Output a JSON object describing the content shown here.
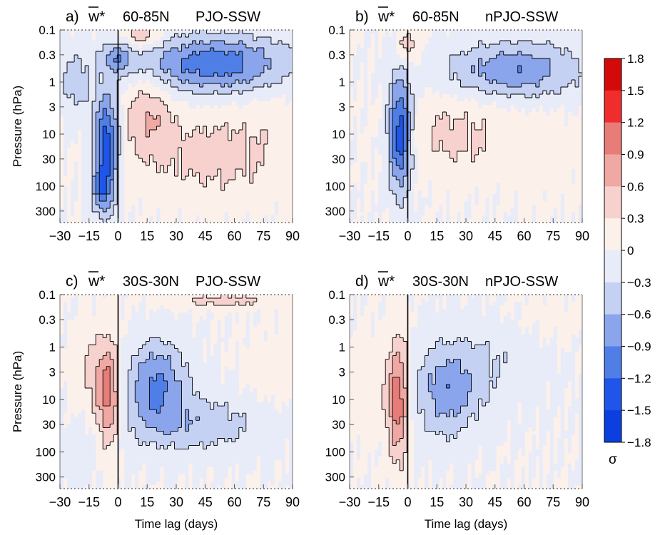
{
  "colors": {
    "neg": [
      "#0a1f9a",
      "#0b3fe0",
      "#1f55e8",
      "#4f7fe6",
      "#8aa5ec",
      "#c4d1f3",
      "#e8ebf8"
    ],
    "pos": [
      "#fcf0ea",
      "#f6d1cd",
      "#f0a8a2",
      "#e77c78",
      "#f02d2d",
      "#d40a0a",
      "#8e0a0a"
    ],
    "contour": "#000000"
  },
  "chart_data": [
    {
      "type": "heatmap",
      "panel": "a",
      "label": "a)",
      "variable": "w*",
      "region": "60-85N",
      "composite": "PJO-SSW",
      "x_ticks": [
        -30,
        -15,
        0,
        15,
        30,
        45,
        60,
        75,
        90
      ],
      "y_ticks": [
        "0.1",
        "0.3",
        "1",
        "3",
        "10",
        "30",
        "100",
        "300"
      ],
      "xlim": [
        -30,
        90
      ],
      "ylim_hPa": [
        500,
        0.1
      ],
      "y_scale": "log",
      "ylabel": "Pressure (hPa)",
      "xlabel": "",
      "blobs": [
        {
          "x": 50,
          "p": 0.45,
          "rx": 38,
          "rp": 0.9,
          "a": -1.1
        },
        {
          "x": 12,
          "p": 0.13,
          "rx": 10,
          "rp": 0.4,
          "a": 0.55
        },
        {
          "x": 0,
          "p": 0.35,
          "rx": 8,
          "rp": 0.5,
          "a": -0.7
        },
        {
          "x": -6,
          "p": 15,
          "rx": 6.5,
          "rp": 1.6,
          "a": -1.4
        },
        {
          "x": -8,
          "p": 120,
          "rx": 5,
          "rp": 0.8,
          "a": -0.8
        },
        {
          "x": 15,
          "p": 4,
          "rx": 12,
          "rp": 1.2,
          "a": 0.55
        },
        {
          "x": 50,
          "p": 25,
          "rx": 40,
          "rp": 1.4,
          "a": 0.42
        },
        {
          "x": 80,
          "p": 4,
          "rx": 16,
          "rp": 1.0,
          "a": 0.1
        },
        {
          "x": -22,
          "p": 1,
          "rx": 8,
          "rp": 1.0,
          "a": -0.45
        }
      ]
    },
    {
      "type": "heatmap",
      "panel": "b",
      "label": "b)",
      "variable": "w*",
      "region": "60-85N",
      "composite": "nPJO-SSW",
      "x_ticks": [
        -30,
        -15,
        0,
        15,
        30,
        45,
        60,
        75,
        90
      ],
      "y_ticks": [
        "0.1",
        "0.3",
        "1",
        "3",
        "10",
        "30",
        "100",
        "300"
      ],
      "xlim": [
        -30,
        90
      ],
      "ylim_hPa": [
        500,
        0.1
      ],
      "y_scale": "log",
      "ylabel": "",
      "xlabel": "",
      "blobs": [
        {
          "x": 55,
          "p": 0.6,
          "rx": 35,
          "rp": 0.9,
          "a": -0.85
        },
        {
          "x": 0,
          "p": 0.2,
          "rx": 6,
          "rp": 0.6,
          "a": 0.5
        },
        {
          "x": -4,
          "p": 10,
          "rx": 6,
          "rp": 1.8,
          "a": -1.45
        },
        {
          "x": 25,
          "p": 10,
          "rx": 28,
          "rp": 1.3,
          "a": 0.38
        },
        {
          "x": 70,
          "p": 20,
          "rx": 20,
          "rp": 1.5,
          "a": 0.15
        }
      ]
    },
    {
      "type": "heatmap",
      "panel": "c",
      "label": "c)",
      "variable": "w*",
      "region": "30S-30N",
      "composite": "PJO-SSW",
      "x_ticks": [
        -30,
        -15,
        0,
        15,
        30,
        45,
        60,
        75,
        90
      ],
      "y_ticks": [
        "0.1",
        "0.3",
        "1",
        "3",
        "10",
        "30",
        "100",
        "300"
      ],
      "xlim": [
        -30,
        90
      ],
      "ylim_hPa": [
        500,
        0.1
      ],
      "y_scale": "log",
      "ylabel": "Pressure (hPa)",
      "xlabel": "Time lag (days)",
      "blobs": [
        {
          "x": 20,
          "p": 5,
          "rx": 15,
          "rp": 1.3,
          "a": -0.95
        },
        {
          "x": 40,
          "p": 30,
          "rx": 35,
          "rp": 0.9,
          "a": -0.5
        },
        {
          "x": -5,
          "p": 10,
          "rx": 6,
          "rp": 1.7,
          "a": 0.95
        },
        {
          "x": -12,
          "p": 3,
          "rx": 10,
          "rp": 1.4,
          "a": 0.35
        },
        {
          "x": 55,
          "p": 0.13,
          "rx": 30,
          "rp": 0.25,
          "a": 0.4
        },
        {
          "x": 80,
          "p": 3,
          "rx": 14,
          "rp": 1.0,
          "a": 0.2
        },
        {
          "x": -15,
          "p": 100,
          "rx": 15,
          "rp": 1.0,
          "a": -0.15
        }
      ]
    },
    {
      "type": "heatmap",
      "panel": "d",
      "label": "d)",
      "variable": "w*",
      "region": "30S-30N",
      "composite": "nPJO-SSW",
      "x_ticks": [
        -30,
        -15,
        0,
        15,
        30,
        45,
        60,
        75,
        90
      ],
      "y_ticks": [
        "0.1",
        "0.3",
        "1",
        "3",
        "10",
        "30",
        "100",
        "300"
      ],
      "xlim": [
        -30,
        90
      ],
      "ylim_hPa": [
        500,
        0.1
      ],
      "y_scale": "log",
      "ylabel": "",
      "xlabel": "Time lag (days)",
      "blobs": [
        {
          "x": -5,
          "p": 10,
          "rx": 5.5,
          "rp": 1.9,
          "a": 1.1
        },
        {
          "x": 20,
          "p": 8,
          "rx": 16,
          "rp": 1.4,
          "a": -0.72
        },
        {
          "x": 40,
          "p": 2,
          "rx": 30,
          "rp": 1.3,
          "a": -0.28
        },
        {
          "x": -20,
          "p": 5,
          "rx": 12,
          "rp": 1.5,
          "a": 0.2
        },
        {
          "x": 70,
          "p": 0.3,
          "rx": 20,
          "rp": 1.0,
          "a": 0.1
        }
      ]
    }
  ],
  "colorbar": {
    "ticks": [
      "1.8",
      "1.5",
      "1.2",
      "0.9",
      "0.6",
      "0.3",
      "0",
      "−0.3",
      "−0.6",
      "−0.9",
      "−1.2",
      "−1.5",
      "−1.8"
    ],
    "unit": "σ",
    "levels": [
      1.8,
      1.5,
      1.2,
      0.9,
      0.6,
      0.3,
      0,
      -0.3,
      -0.6,
      -0.9,
      -1.2,
      -1.5,
      -1.8
    ]
  }
}
